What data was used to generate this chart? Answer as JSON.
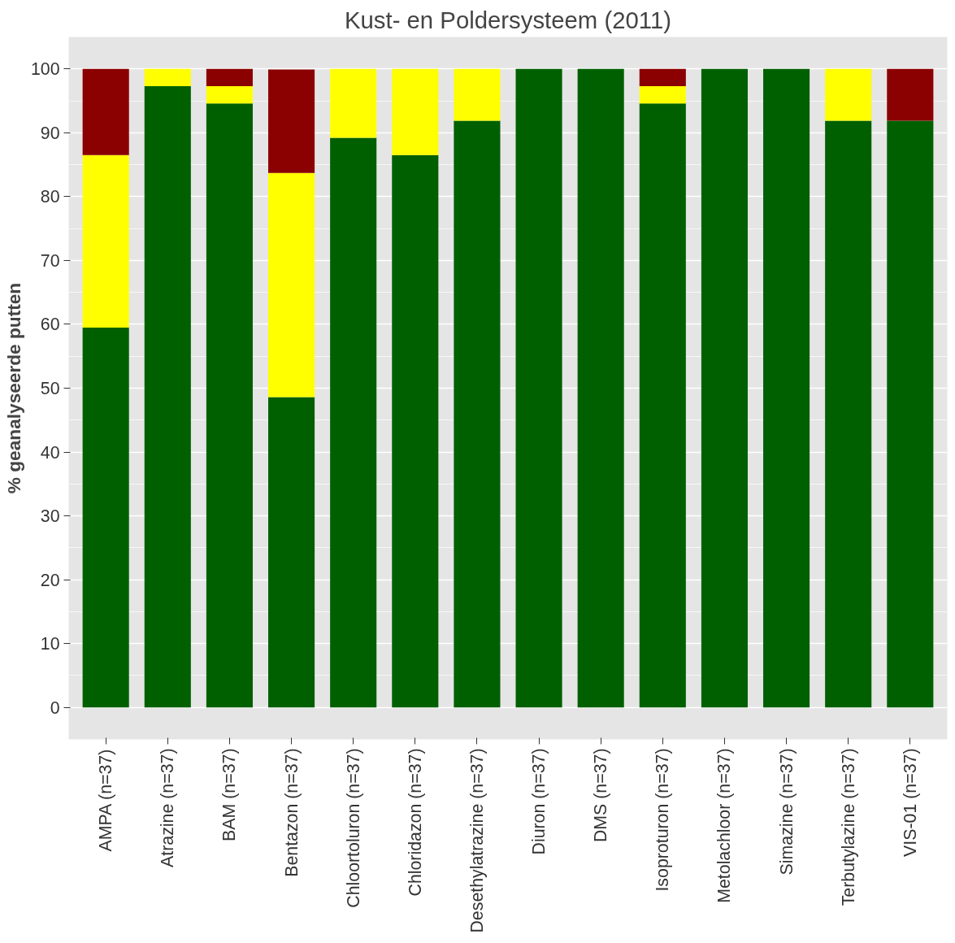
{
  "chart_data": {
    "type": "bar",
    "title": "Kust- en Poldersysteem (2011)",
    "ylabel": "% geanalyseerde putten",
    "categories": [
      "AMPA (n=37)",
      "Atrazine (n=37)",
      "BAM (n=37)",
      "Bentazon (n=37)",
      "Chloortoluron (n=37)",
      "Chloridazon (n=37)",
      "Desethylatrazine (n=37)",
      "Diuron (n=37)",
      "DMS (n=37)",
      "Isoproturon (n=37)",
      "Metolachloor (n=37)",
      "Simazine (n=37)",
      "Terbutylazine (n=37)",
      "VIS-01 (n=37)"
    ],
    "stacked": true,
    "series": [
      {
        "color": "#006000",
        "values": [
          59.5,
          97.3,
          94.6,
          48.6,
          89.2,
          86.5,
          91.9,
          100,
          100,
          94.6,
          100,
          100,
          91.9,
          91.9
        ]
      },
      {
        "color": "#ffff00",
        "values": [
          27.0,
          2.7,
          2.7,
          35.1,
          10.8,
          13.5,
          8.1,
          0,
          0,
          2.7,
          0,
          0,
          8.1,
          0
        ]
      },
      {
        "color": "#8b0000",
        "values": [
          13.5,
          0,
          2.7,
          16.2,
          0,
          0,
          0,
          0,
          0,
          2.7,
          0,
          0,
          0,
          8.1
        ]
      }
    ],
    "ylim": [
      -5,
      105
    ],
    "yticks": [
      0,
      10,
      20,
      30,
      40,
      50,
      60,
      70,
      80,
      90,
      100
    ],
    "grid": "y"
  }
}
